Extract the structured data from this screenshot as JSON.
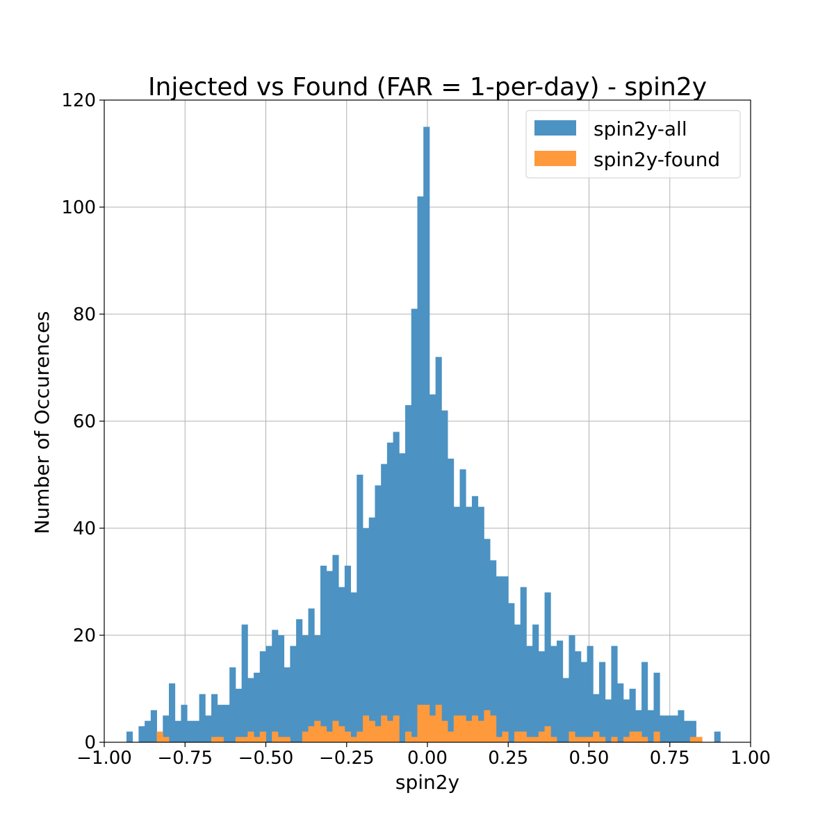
{
  "chart_data": {
    "type": "bar",
    "title": "Injected vs Found (FAR = 1-per-day) - spin2y",
    "xlabel": "spin2y",
    "ylabel": "Number of Occurences",
    "xlim": [
      -1.0,
      1.0
    ],
    "ylim": [
      0,
      120
    ],
    "xticks": [
      "−1.00",
      "−0.75",
      "−0.50",
      "−0.25",
      "0.00",
      "0.25",
      "0.50",
      "0.75",
      "1.00"
    ],
    "yticks": [
      "0",
      "20",
      "40",
      "60",
      "80",
      "100",
      "120"
    ],
    "grid": true,
    "legend_position": "top-right",
    "bin_start": -0.95,
    "bin_width": 0.01875,
    "series": [
      {
        "name": "spin2y-all",
        "color": "#4c92c3",
        "values": [
          0,
          2,
          0,
          3,
          4,
          6,
          1,
          5,
          11,
          4,
          7,
          4,
          4,
          9,
          5,
          9,
          7,
          7,
          14,
          10,
          22,
          12,
          13,
          17,
          18,
          21,
          20,
          14,
          18,
          23,
          20,
          25,
          20,
          33,
          32,
          35,
          29,
          33,
          28,
          50,
          40,
          42,
          48,
          52,
          56,
          58,
          54,
          63,
          81,
          102,
          115,
          65,
          72,
          62,
          53,
          44,
          51,
          44,
          46,
          44,
          38,
          34,
          31,
          31,
          26,
          22,
          29,
          18,
          22,
          17,
          28,
          18,
          19,
          12,
          20,
          17,
          15,
          18,
          9,
          15,
          8,
          18,
          11,
          8,
          10,
          6,
          15,
          6,
          13,
          5,
          5,
          5,
          6,
          4,
          4,
          0,
          0,
          0,
          2,
          0
        ]
      },
      {
        "name": "spin2y-found",
        "color": "#ff9a3c",
        "values": [
          0,
          0,
          0,
          0,
          0,
          0,
          2,
          1,
          0,
          0,
          0,
          0,
          0,
          0,
          0,
          1,
          1,
          0,
          0,
          1,
          1,
          2,
          1,
          2,
          0,
          2,
          1,
          1,
          0,
          0,
          2,
          3,
          4,
          3,
          2,
          4,
          3,
          2,
          1,
          2,
          5,
          4,
          3,
          5,
          4,
          5,
          0,
          2,
          1,
          7,
          7,
          5,
          7,
          4,
          2,
          5,
          5,
          4,
          5,
          4,
          6,
          5,
          1,
          2,
          0,
          2,
          2,
          1,
          1,
          2,
          3,
          1,
          0,
          0,
          2,
          1,
          1,
          1,
          2,
          1,
          0,
          1,
          0,
          1,
          2,
          2,
          1,
          0,
          2,
          0,
          0,
          0,
          0,
          0,
          1,
          1,
          0,
          0,
          0,
          0
        ]
      }
    ]
  }
}
